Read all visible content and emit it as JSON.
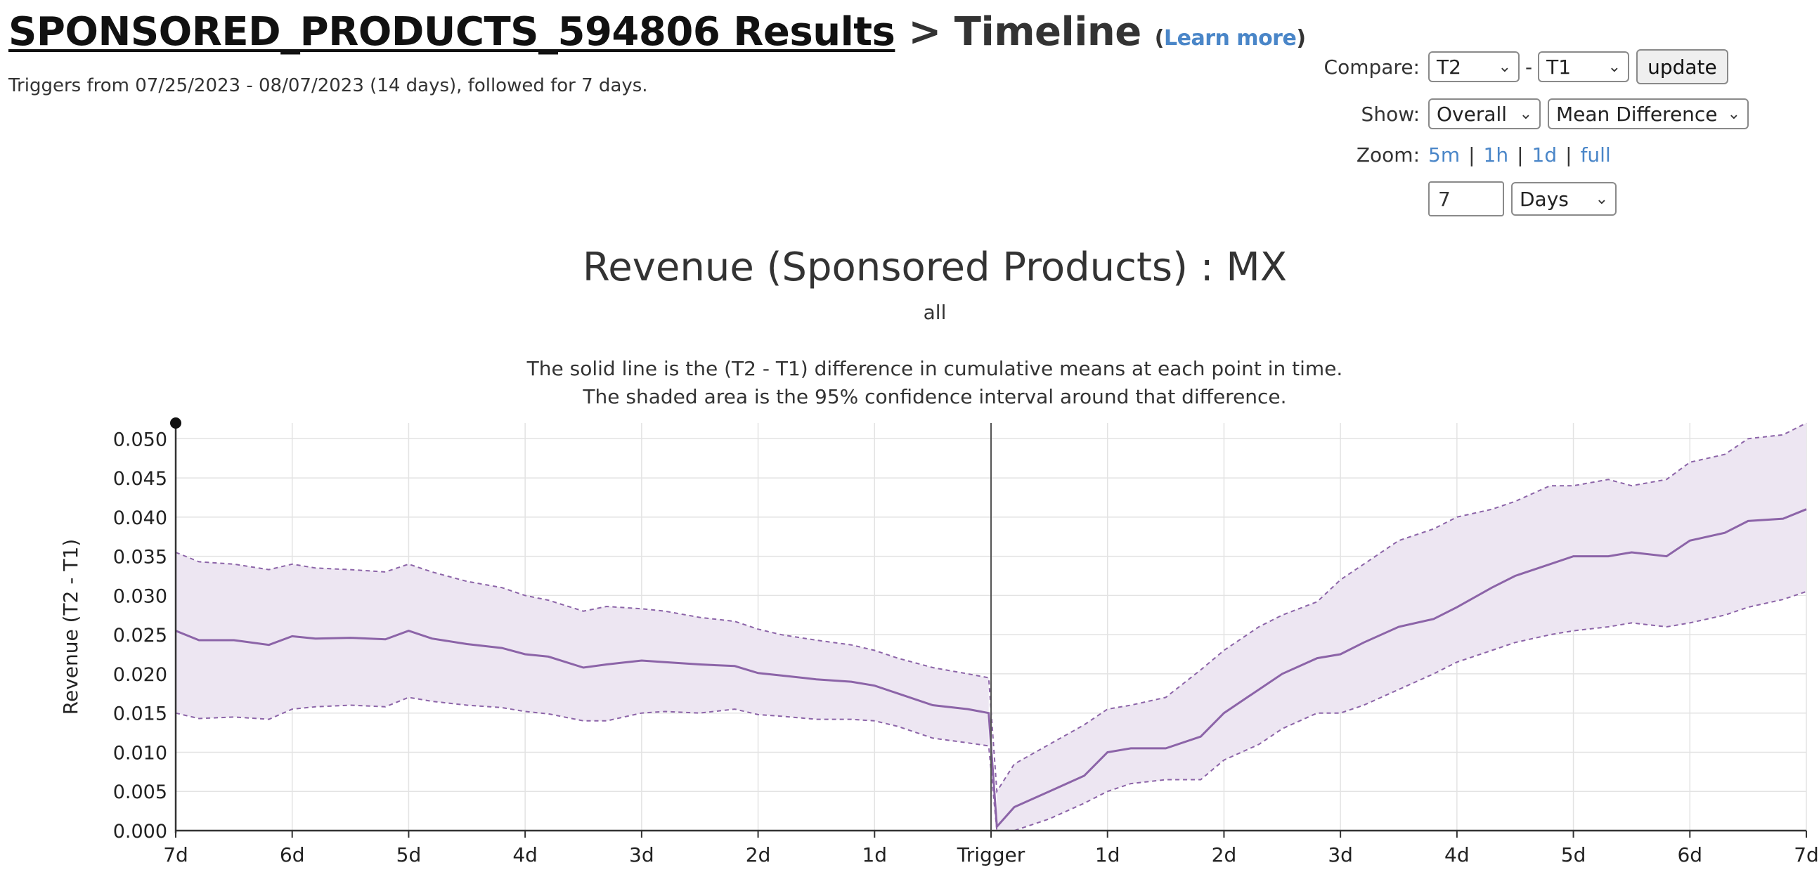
{
  "header": {
    "results_link": "SPONSORED_PRODUCTS_594806 Results",
    "separator": "> Timeline",
    "learn_open": "(",
    "learn_more": "Learn more",
    "learn_close": ")",
    "subtitle": "Triggers from 07/25/2023 - 08/07/2023 (14 days), followed for 7 days."
  },
  "controls": {
    "compare_label": "Compare:",
    "compare_a": "T2",
    "compare_dash": "-",
    "compare_b": "T1",
    "update_label": "update",
    "show_label": "Show:",
    "show_segment": "Overall",
    "show_metric": "Mean Difference",
    "zoom_label": "Zoom:",
    "zoom_options": [
      "5m",
      "1h",
      "1d",
      "full"
    ],
    "window_value": "7",
    "window_unit": "Days"
  },
  "chart_data": {
    "type": "line",
    "title": "Revenue (Sponsored Products) : MX",
    "subtitle": "all",
    "description": [
      "The solid line is the (T2 - T1) difference in cumulative means at each point in time.",
      "The shaded area is the 95% confidence interval around that difference."
    ],
    "ylabel": "Revenue (T2 - T1)",
    "xlabel": "",
    "x_ticks": [
      "7d",
      "6d",
      "5d",
      "4d",
      "3d",
      "2d",
      "1d",
      "Trigger",
      "1d",
      "2d",
      "3d",
      "4d",
      "5d",
      "6d",
      "7d"
    ],
    "xlim": [
      -7,
      7
    ],
    "ylim": [
      0,
      0.052
    ],
    "y_ticks": [
      "0.000",
      "0.005",
      "0.010",
      "0.015",
      "0.020",
      "0.025",
      "0.030",
      "0.035",
      "0.040",
      "0.045",
      "0.050"
    ],
    "grid": true,
    "trigger_line_x": 0,
    "series": [
      {
        "role": "mean",
        "x": [
          -7,
          -6.8,
          -6.5,
          -6.2,
          -6,
          -5.8,
          -5.5,
          -5.2,
          -5,
          -4.8,
          -4.5,
          -4.2,
          -4,
          -3.8,
          -3.5,
          -3.3,
          -3,
          -2.8,
          -2.5,
          -2.2,
          -2,
          -1.8,
          -1.5,
          -1.2,
          -1,
          -0.8,
          -0.5,
          -0.2,
          -0.02,
          0.05,
          0.2,
          0.5,
          0.8,
          1.0,
          1.2,
          1.5,
          1.8,
          2.0,
          2.3,
          2.5,
          2.8,
          3.0,
          3.2,
          3.5,
          3.8,
          4.0,
          4.3,
          4.5,
          4.8,
          5.0,
          5.3,
          5.5,
          5.8,
          6.0,
          6.3,
          6.5,
          6.8,
          7.0
        ],
        "y": [
          0.0255,
          0.0243,
          0.0243,
          0.0237,
          0.0248,
          0.0245,
          0.0246,
          0.0244,
          0.0255,
          0.0245,
          0.0238,
          0.0233,
          0.0225,
          0.0222,
          0.0208,
          0.0212,
          0.0217,
          0.0215,
          0.0212,
          0.021,
          0.0201,
          0.0198,
          0.0193,
          0.019,
          0.0185,
          0.0175,
          0.016,
          0.0155,
          0.015,
          0.0005,
          0.003,
          0.005,
          0.007,
          0.01,
          0.0105,
          0.0105,
          0.012,
          0.015,
          0.018,
          0.02,
          0.022,
          0.0225,
          0.024,
          0.026,
          0.027,
          0.0285,
          0.031,
          0.0325,
          0.034,
          0.035,
          0.035,
          0.0355,
          0.035,
          0.037,
          0.038,
          0.0395,
          0.0398,
          0.041
        ]
      },
      {
        "role": "upper",
        "x": [
          -7,
          -6.8,
          -6.5,
          -6.2,
          -6,
          -5.8,
          -5.5,
          -5.2,
          -5,
          -4.8,
          -4.5,
          -4.2,
          -4,
          -3.8,
          -3.5,
          -3.3,
          -3,
          -2.8,
          -2.5,
          -2.2,
          -2,
          -1.8,
          -1.5,
          -1.2,
          -1,
          -0.8,
          -0.5,
          -0.2,
          -0.02,
          0.05,
          0.2,
          0.5,
          0.8,
          1.0,
          1.2,
          1.5,
          1.8,
          2.0,
          2.3,
          2.5,
          2.8,
          3.0,
          3.2,
          3.5,
          3.8,
          4.0,
          4.3,
          4.5,
          4.8,
          5.0,
          5.3,
          5.5,
          5.8,
          6.0,
          6.3,
          6.5,
          6.8,
          7.0
        ],
        "y": [
          0.0355,
          0.0343,
          0.034,
          0.0333,
          0.034,
          0.0335,
          0.0333,
          0.033,
          0.034,
          0.033,
          0.0318,
          0.031,
          0.03,
          0.0294,
          0.028,
          0.0286,
          0.0283,
          0.028,
          0.0272,
          0.0267,
          0.0257,
          0.025,
          0.0243,
          0.0237,
          0.023,
          0.022,
          0.0208,
          0.02,
          0.0195,
          0.005,
          0.0085,
          0.011,
          0.0135,
          0.0155,
          0.016,
          0.017,
          0.0205,
          0.023,
          0.026,
          0.0275,
          0.0292,
          0.032,
          0.034,
          0.037,
          0.0385,
          0.04,
          0.041,
          0.042,
          0.044,
          0.044,
          0.0448,
          0.044,
          0.0448,
          0.047,
          0.048,
          0.05,
          0.0505,
          0.052
        ]
      },
      {
        "role": "lower",
        "x": [
          -7,
          -6.8,
          -6.5,
          -6.2,
          -6,
          -5.8,
          -5.5,
          -5.2,
          -5,
          -4.8,
          -4.5,
          -4.2,
          -4,
          -3.8,
          -3.5,
          -3.3,
          -3,
          -2.8,
          -2.5,
          -2.2,
          -2,
          -1.8,
          -1.5,
          -1.2,
          -1,
          -0.8,
          -0.5,
          -0.2,
          -0.02,
          0.05,
          0.2,
          0.5,
          0.8,
          1.0,
          1.2,
          1.5,
          1.8,
          2.0,
          2.3,
          2.5,
          2.8,
          3.0,
          3.2,
          3.5,
          3.8,
          4.0,
          4.3,
          4.5,
          4.8,
          5.0,
          5.3,
          5.5,
          5.8,
          6.0,
          6.3,
          6.5,
          6.8,
          7.0
        ],
        "y": [
          0.015,
          0.0143,
          0.0145,
          0.0142,
          0.0155,
          0.0158,
          0.016,
          0.0158,
          0.017,
          0.0165,
          0.016,
          0.0157,
          0.0152,
          0.0149,
          0.014,
          0.014,
          0.015,
          0.0152,
          0.015,
          0.0155,
          0.0148,
          0.0146,
          0.0142,
          0.0142,
          0.014,
          0.0133,
          0.0118,
          0.0112,
          0.0108,
          0.0,
          0.0,
          0.0015,
          0.0035,
          0.005,
          0.006,
          0.0065,
          0.0065,
          0.009,
          0.011,
          0.013,
          0.015,
          0.015,
          0.016,
          0.018,
          0.02,
          0.0215,
          0.023,
          0.024,
          0.025,
          0.0255,
          0.026,
          0.0265,
          0.026,
          0.0265,
          0.0275,
          0.0285,
          0.0295,
          0.0305
        ]
      }
    ],
    "colors": {
      "line": "#8c64a8",
      "band": "#ede6f2",
      "grid": "#e3e3e3",
      "axis": "#333333",
      "trigger": "#555555"
    }
  }
}
